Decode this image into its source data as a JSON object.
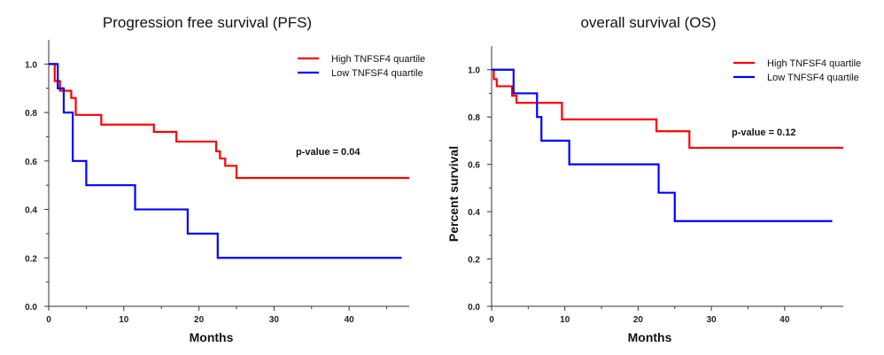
{
  "chart_data": [
    {
      "type": "line",
      "title": "Progression free survival (PFS)",
      "xlabel": "Months",
      "ylabel": "",
      "xlim": [
        0,
        48
      ],
      "ylim": [
        0,
        1.1
      ],
      "xticks": [
        0,
        10,
        20,
        30,
        40
      ],
      "xtick_labels": [
        "0",
        "10",
        "20",
        "30",
        "40"
      ],
      "yticks": [
        0,
        0.2,
        0.4,
        0.6,
        0.8,
        1.0
      ],
      "ytick_labels": [
        "0.0",
        "0.2",
        "0.4",
        "0.6",
        "0.8",
        "1.0"
      ],
      "legend_position": "top-right",
      "annotation": "p-value = 0.04",
      "series": [
        {
          "name": "High TNFSF4 quartile",
          "color": "#ff0000",
          "step": true,
          "x": [
            0,
            0.8,
            1.5,
            3.0,
            3.6,
            7.0,
            14.0,
            17.0,
            22.3,
            22.8,
            23.5,
            25.0,
            48
          ],
          "y": [
            1.0,
            0.93,
            0.89,
            0.86,
            0.79,
            0.75,
            0.72,
            0.68,
            0.64,
            0.61,
            0.58,
            0.53,
            0.53
          ]
        },
        {
          "name": "Low TNFSF4 quartile",
          "color": "#0000ff",
          "step": true,
          "x": [
            0,
            1.2,
            2.0,
            3.2,
            5.0,
            11.5,
            18.5,
            22.5,
            47
          ],
          "y": [
            1.0,
            0.9,
            0.8,
            0.6,
            0.5,
            0.4,
            0.3,
            0.2,
            0.2
          ]
        }
      ]
    },
    {
      "type": "line",
      "title": "overall survival (OS)",
      "xlabel": "Months",
      "ylabel": "Percent survival",
      "xlim": [
        0,
        48
      ],
      "ylim": [
        0,
        1.1
      ],
      "xticks": [
        0,
        10,
        20,
        30,
        40
      ],
      "xtick_labels": [
        "0",
        "10",
        "20",
        "30",
        "40"
      ],
      "yticks": [
        0,
        0.2,
        0.4,
        0.6,
        0.8,
        1.0
      ],
      "ytick_labels": [
        "0.0",
        "0.2",
        "0.4",
        "0.6",
        "0.8",
        "1.0"
      ],
      "legend_position": "top-right",
      "annotation": "p-value = 0.12",
      "series": [
        {
          "name": "High TNFSF4 quartile",
          "color": "#ff0000",
          "step": true,
          "x": [
            0,
            0.3,
            0.7,
            2.8,
            3.4,
            9.6,
            22.5,
            27.0,
            48
          ],
          "y": [
            1.0,
            0.96,
            0.93,
            0.89,
            0.86,
            0.79,
            0.74,
            0.67,
            0.67
          ]
        },
        {
          "name": "Low TNFSF4 quartile",
          "color": "#0000ff",
          "step": true,
          "x": [
            0,
            3.0,
            6.2,
            6.8,
            10.6,
            22.8,
            25.0,
            46.5
          ],
          "y": [
            1.0,
            0.9,
            0.8,
            0.7,
            0.6,
            0.48,
            0.36,
            0.36
          ]
        }
      ]
    }
  ]
}
